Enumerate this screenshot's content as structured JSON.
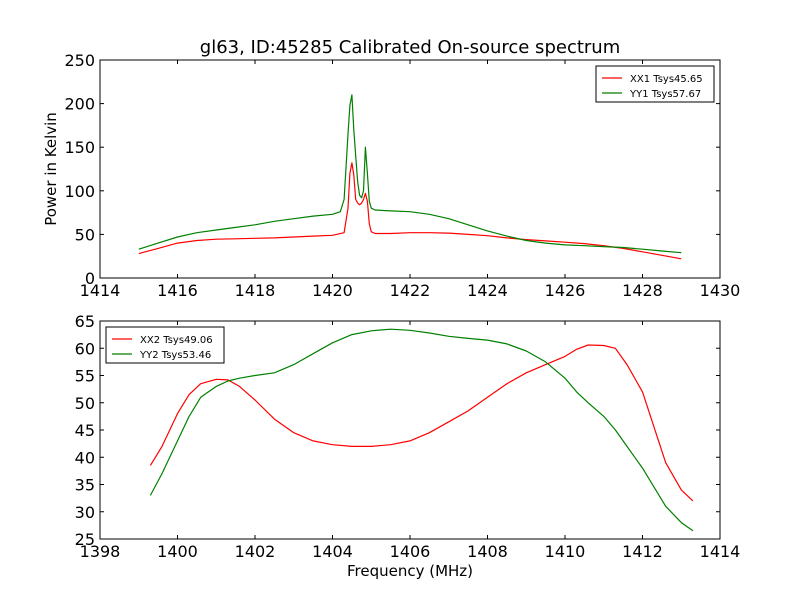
{
  "title": "gl63, ID:45285 Calibrated On-source spectrum",
  "chart_data": [
    {
      "type": "line",
      "panel": "top",
      "title": "gl63, ID:45285 Calibrated On-source spectrum",
      "xlabel": "",
      "ylabel": "Power in Kelvin",
      "xlim": [
        1414,
        1430
      ],
      "ylim": [
        0,
        250
      ],
      "xticks": [
        "1414",
        "1416",
        "1418",
        "1420",
        "1422",
        "1424",
        "1426",
        "1428",
        "1430"
      ],
      "yticks": [
        "0",
        "50",
        "100",
        "150",
        "200",
        "250"
      ],
      "legend_position": "upper right",
      "grid": false,
      "series": [
        {
          "name": "XX1 Tsys45.65",
          "color": "#ff0000",
          "x": [
            1415.0,
            1415.5,
            1416.0,
            1416.5,
            1417.0,
            1417.5,
            1418.0,
            1418.5,
            1419.0,
            1419.5,
            1420.0,
            1420.3,
            1420.4,
            1420.45,
            1420.5,
            1420.55,
            1420.6,
            1420.65,
            1420.7,
            1420.75,
            1420.8,
            1420.85,
            1420.9,
            1420.95,
            1421.0,
            1421.1,
            1421.5,
            1422.0,
            1422.5,
            1423.0,
            1423.5,
            1424.0,
            1424.5,
            1425.0,
            1425.5,
            1426.0,
            1426.5,
            1427.0,
            1427.5,
            1428.0,
            1428.5,
            1429.0
          ],
          "y": [
            28,
            34,
            40,
            43,
            44.5,
            45,
            45.5,
            46,
            47,
            48,
            49,
            52,
            80,
            120,
            132,
            118,
            90,
            86,
            84,
            86,
            90,
            97,
            88,
            62,
            53,
            51,
            51,
            52,
            52,
            51.5,
            50,
            48.5,
            46,
            44,
            42.5,
            41,
            39.5,
            37,
            34,
            30,
            26,
            22
          ]
        },
        {
          "name": "YY1 Tsys57.67",
          "color": "#008000",
          "x": [
            1415.0,
            1415.5,
            1416.0,
            1416.5,
            1417.0,
            1417.5,
            1418.0,
            1418.5,
            1419.0,
            1419.5,
            1420.0,
            1420.2,
            1420.3,
            1420.4,
            1420.45,
            1420.5,
            1420.55,
            1420.6,
            1420.65,
            1420.7,
            1420.75,
            1420.8,
            1420.85,
            1420.9,
            1420.95,
            1421.0,
            1421.1,
            1421.5,
            1422.0,
            1422.5,
            1423.0,
            1423.5,
            1424.0,
            1424.5,
            1425.0,
            1425.5,
            1426.0,
            1426.5,
            1427.0,
            1427.5,
            1428.0,
            1428.5,
            1429.0
          ],
          "y": [
            33,
            40,
            47,
            52,
            55,
            58,
            61,
            65,
            68,
            71,
            73,
            76,
            90,
            165,
            198,
            210,
            170,
            140,
            110,
            95,
            92,
            100,
            150,
            120,
            88,
            80,
            78,
            77,
            76,
            73,
            68,
            61,
            54,
            48,
            43,
            40,
            38,
            37,
            36,
            35,
            33,
            31,
            29
          ]
        }
      ]
    },
    {
      "type": "line",
      "panel": "bottom",
      "title": "",
      "xlabel": "Frequency (MHz)",
      "ylabel": "",
      "xlim": [
        1398,
        1414
      ],
      "ylim": [
        25,
        65
      ],
      "xticks": [
        "1398",
        "1400",
        "1402",
        "1404",
        "1406",
        "1408",
        "1410",
        "1412",
        "1414"
      ],
      "yticks": [
        "25",
        "30",
        "35",
        "40",
        "45",
        "50",
        "55",
        "60",
        "65"
      ],
      "legend_position": "upper left",
      "grid": false,
      "series": [
        {
          "name": "XX2 Tsys49.06",
          "color": "#ff0000",
          "x": [
            1399.3,
            1399.6,
            1400.0,
            1400.3,
            1400.6,
            1401.0,
            1401.3,
            1401.6,
            1402.0,
            1402.5,
            1403.0,
            1403.5,
            1404.0,
            1404.5,
            1405.0,
            1405.5,
            1406.0,
            1406.5,
            1407.0,
            1407.5,
            1408.0,
            1408.5,
            1409.0,
            1409.5,
            1410.0,
            1410.3,
            1410.6,
            1411.0,
            1411.3,
            1411.6,
            1412.0,
            1412.3,
            1412.6,
            1413.0,
            1413.3
          ],
          "y": [
            38.5,
            42,
            48,
            51.5,
            53.5,
            54.3,
            54.2,
            53,
            50.5,
            47,
            44.5,
            43,
            42.3,
            42,
            42,
            42.3,
            43,
            44.5,
            46.5,
            48.5,
            51,
            53.5,
            55.5,
            57,
            58.5,
            59.8,
            60.6,
            60.5,
            60,
            57,
            52,
            45.5,
            39,
            34,
            32
          ]
        },
        {
          "name": "YY2 Tsys53.46",
          "color": "#008000",
          "x": [
            1399.3,
            1399.6,
            1400.0,
            1400.3,
            1400.6,
            1401.0,
            1401.3,
            1401.6,
            1402.0,
            1402.5,
            1403.0,
            1403.5,
            1404.0,
            1404.5,
            1405.0,
            1405.5,
            1406.0,
            1406.5,
            1407.0,
            1407.5,
            1408.0,
            1408.5,
            1409.0,
            1409.5,
            1410.0,
            1410.3,
            1410.6,
            1411.0,
            1411.3,
            1411.6,
            1412.0,
            1412.3,
            1412.6,
            1413.0,
            1413.3
          ],
          "y": [
            33,
            37,
            43,
            47.5,
            51,
            53,
            54,
            54.5,
            55,
            55.5,
            57,
            59,
            61,
            62.5,
            63.2,
            63.5,
            63.3,
            62.8,
            62.2,
            61.8,
            61.5,
            60.8,
            59.5,
            57.5,
            54.5,
            52,
            50,
            47.5,
            45,
            42,
            38,
            34.5,
            31,
            28,
            26.5
          ]
        }
      ]
    }
  ]
}
